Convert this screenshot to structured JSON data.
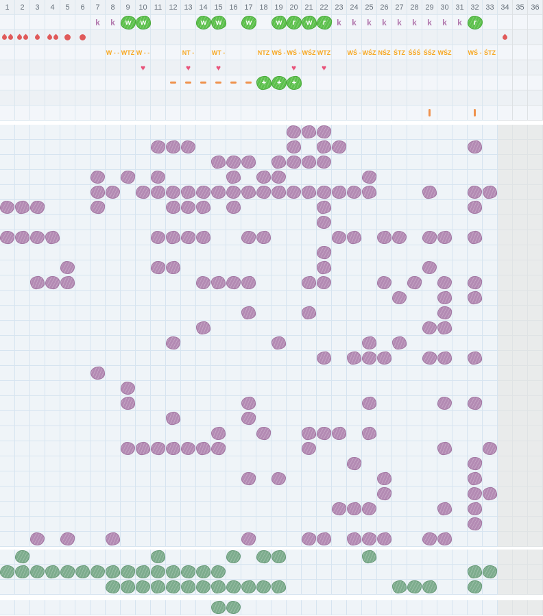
{
  "columns": {
    "count": 36,
    "labels": [
      "1",
      "2",
      "3",
      "4",
      "5",
      "6",
      "7",
      "8",
      "9",
      "10",
      "11",
      "12",
      "13",
      "14",
      "15",
      "16",
      "17",
      "18",
      "19",
      "20",
      "21",
      "22",
      "23",
      "24",
      "25",
      "26",
      "27",
      "28",
      "29",
      "30",
      "31",
      "32",
      "33",
      "34",
      "35",
      "36"
    ],
    "grayed_from_col": 34
  },
  "colors": {
    "bloom_purple": "#b38ab3",
    "bloom_purple_border": "#a277a2",
    "sow_green": "#5cc04c",
    "sow_green_border": "#49a93a",
    "harvest_sage": "#7dac8d",
    "harvest_sage_border": "#699a79",
    "letter_purple": "#b279ae",
    "code_orange": "#f7a823",
    "heart_pink": "#e8537a",
    "dash_orange": "#ef914c",
    "water_red": "#e05a5a",
    "header_number_gray": "#68727c",
    "grid_line_blue": "#d6e4f0",
    "panel_bg": "#eff4f8",
    "gray_column_bg": "#e9eaeb"
  },
  "header": {
    "letter_row": [
      {
        "col": 7,
        "kind": "k",
        "char": "k"
      },
      {
        "col": 8,
        "kind": "k",
        "char": "k"
      },
      {
        "col": 9,
        "kind": "blob",
        "char": "w"
      },
      {
        "col": 10,
        "kind": "blob",
        "char": "w"
      },
      {
        "col": 14,
        "kind": "blob",
        "char": "w"
      },
      {
        "col": 15,
        "kind": "blob",
        "char": "w"
      },
      {
        "col": 17,
        "kind": "blob",
        "char": "w"
      },
      {
        "col": 19,
        "kind": "blob",
        "char": "w"
      },
      {
        "col": 20,
        "kind": "blob",
        "char": "r"
      },
      {
        "col": 21,
        "kind": "blob",
        "char": "w"
      },
      {
        "col": 22,
        "kind": "blob",
        "char": "r"
      },
      {
        "col": 23,
        "kind": "k",
        "char": "k"
      },
      {
        "col": 24,
        "kind": "k",
        "char": "k"
      },
      {
        "col": 25,
        "kind": "k",
        "char": "k"
      },
      {
        "col": 26,
        "kind": "k",
        "char": "k"
      },
      {
        "col": 27,
        "kind": "k",
        "char": "k"
      },
      {
        "col": 28,
        "kind": "k",
        "char": "k"
      },
      {
        "col": 29,
        "kind": "k",
        "char": "k"
      },
      {
        "col": 30,
        "kind": "k",
        "char": "k"
      },
      {
        "col": 31,
        "kind": "k",
        "char": "k"
      },
      {
        "col": 32,
        "kind": "blob",
        "char": "r"
      }
    ],
    "water_row": [
      {
        "col": 1,
        "glyph": "drop-pair"
      },
      {
        "col": 2,
        "glyph": "drop-pair"
      },
      {
        "col": 3,
        "glyph": "drop"
      },
      {
        "col": 4,
        "glyph": "drop-pair"
      },
      {
        "col": 5,
        "glyph": "dot"
      },
      {
        "col": 6,
        "glyph": "dot"
      },
      {
        "col": 34,
        "glyph": "drop"
      }
    ],
    "code_row": [
      {
        "col": 8,
        "text": "W - -"
      },
      {
        "col": 9,
        "text": "WTZ"
      },
      {
        "col": 10,
        "text": "W - -"
      },
      {
        "col": 13,
        "text": "NT -"
      },
      {
        "col": 15,
        "text": "WT -"
      },
      {
        "col": 18,
        "text": "NTZ"
      },
      {
        "col": 19,
        "text": "WŚ -"
      },
      {
        "col": 20,
        "text": "WŚ -"
      },
      {
        "col": 21,
        "text": "WŚZ"
      },
      {
        "col": 22,
        "text": "WTZ"
      },
      {
        "col": 24,
        "text": "WŚ -"
      },
      {
        "col": 25,
        "text": "WŚZ"
      },
      {
        "col": 26,
        "text": "NŚZ"
      },
      {
        "col": 27,
        "text": "ŚTZ"
      },
      {
        "col": 28,
        "text": "ŚŚŚ"
      },
      {
        "col": 29,
        "text": "ŚŚZ"
      },
      {
        "col": 30,
        "text": "WŚZ"
      },
      {
        "col": 32,
        "text": "WŚ -"
      },
      {
        "col": 33,
        "text": "ŚTZ"
      }
    ],
    "heart_row": [
      10,
      13,
      15,
      20,
      22
    ],
    "dash_row": {
      "dashes": [
        12,
        13,
        14,
        15,
        16,
        17
      ],
      "plus_blobs": [
        18,
        19,
        20
      ]
    },
    "tick_row": [
      29,
      32
    ]
  },
  "main_grid": {
    "row_count": 28,
    "blob_rows": [
      [
        20,
        21,
        22
      ],
      [
        11,
        12,
        13,
        20,
        22,
        23,
        32
      ],
      [
        15,
        16,
        17,
        19,
        20,
        21,
        22
      ],
      [
        7,
        9,
        11,
        16,
        18,
        19,
        25
      ],
      [
        7,
        8,
        10,
        11,
        12,
        13,
        14,
        15,
        16,
        17,
        18,
        19,
        20,
        21,
        22,
        23,
        24,
        25,
        29,
        32,
        33
      ],
      [
        1,
        2,
        3,
        7,
        12,
        13,
        14,
        16,
        22,
        32
      ],
      [
        22
      ],
      [
        1,
        2,
        3,
        4,
        11,
        12,
        13,
        14,
        17,
        18,
        23,
        24,
        26,
        27,
        29,
        30,
        32
      ],
      [
        22
      ],
      [
        5,
        11,
        12,
        22,
        29
      ],
      [
        3,
        4,
        5,
        14,
        15,
        16,
        17,
        21,
        22,
        26,
        28,
        30,
        32
      ],
      [
        27,
        30,
        32
      ],
      [
        17,
        21,
        30
      ],
      [
        14,
        29,
        30
      ],
      [
        12,
        19,
        25,
        27
      ],
      [
        22,
        24,
        25,
        26,
        29,
        30,
        32
      ],
      [
        7
      ],
      [
        9
      ],
      [
        9,
        17,
        25,
        30,
        32
      ],
      [
        12,
        17
      ],
      [
        15,
        18,
        21,
        22,
        23,
        25
      ],
      [
        9,
        10,
        11,
        12,
        13,
        14,
        15,
        21,
        30,
        33
      ],
      [
        24,
        32
      ],
      [
        17,
        19,
        26,
        32
      ],
      [
        26,
        32,
        33
      ],
      [
        23,
        24,
        25,
        30,
        32
      ],
      [
        32
      ],
      [
        3,
        5,
        8,
        17,
        21,
        22,
        24,
        25,
        26,
        29,
        30
      ]
    ]
  },
  "green_grid": {
    "row_count": 3,
    "blob_rows": [
      [
        2,
        11,
        16,
        18,
        19,
        25
      ],
      [
        1,
        2,
        3,
        4,
        5,
        6,
        7,
        8,
        9,
        10,
        11,
        12,
        13,
        14,
        15,
        32,
        33
      ],
      [
        8,
        9,
        10,
        11,
        12,
        13,
        14,
        15,
        16,
        17,
        18,
        19,
        27,
        28,
        29,
        32
      ]
    ]
  },
  "footer_grid": {
    "row_count": 1,
    "blob_rows": [
      [
        15,
        16
      ]
    ]
  }
}
